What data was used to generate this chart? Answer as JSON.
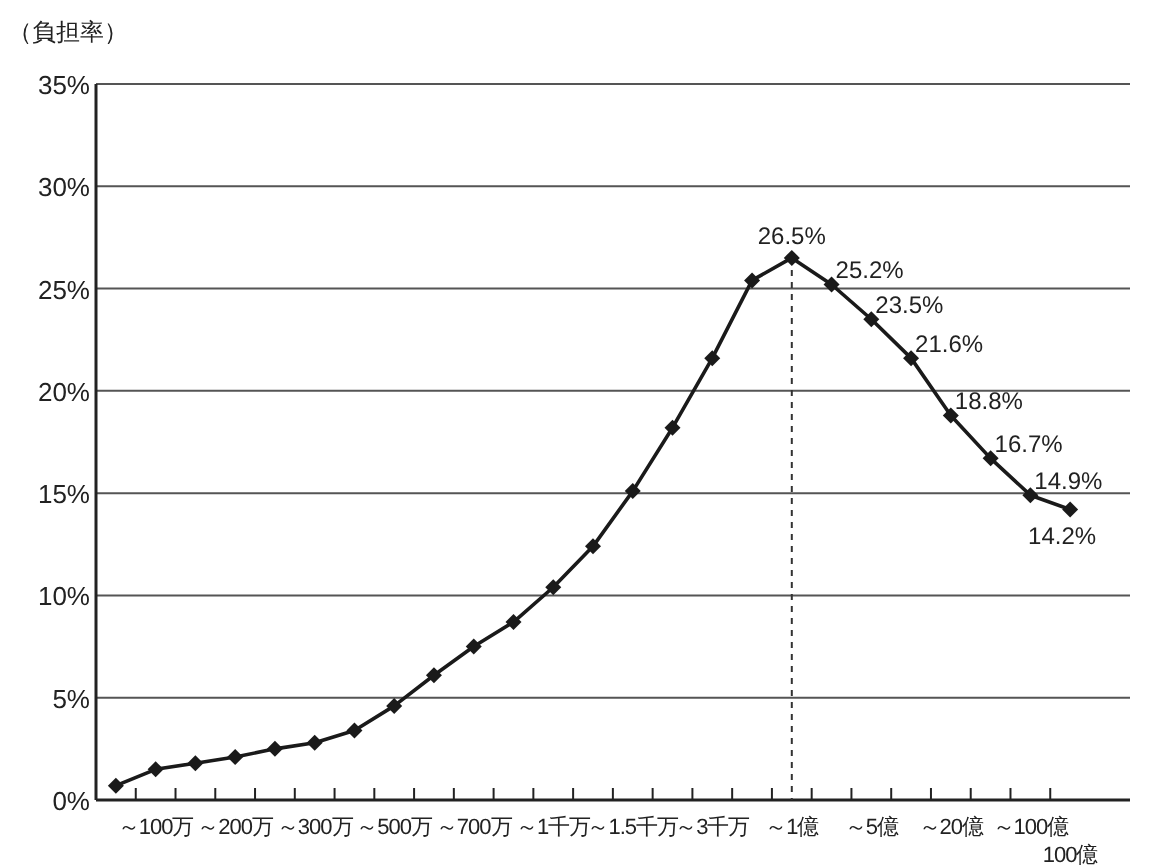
{
  "chart_data": {
    "type": "line",
    "ylabel": "（負担率）",
    "categories": [
      null,
      "～100万",
      null,
      "～200万",
      null,
      "～300万",
      null,
      "～500万",
      null,
      "～700万",
      null,
      "～1千万",
      null,
      "～1.5千万",
      null,
      "～3千万",
      null,
      "～1億",
      null,
      "～5億",
      null,
      "～20億",
      null,
      "～100億",
      "100億"
    ],
    "series": [
      {
        "color": "#1a1a1a",
        "values": [
          0.7,
          1.5,
          1.8,
          2.1,
          2.5,
          2.8,
          3.4,
          4.6,
          6.1,
          7.5,
          8.7,
          10.4,
          12.4,
          15.1,
          18.2,
          21.6,
          25.4,
          26.5,
          25.2,
          23.5,
          21.6,
          18.8,
          16.7,
          14.9,
          14.2
        ],
        "value_labels": [
          null,
          null,
          null,
          null,
          null,
          null,
          null,
          null,
          null,
          null,
          null,
          null,
          null,
          null,
          null,
          null,
          null,
          "26.5%",
          "25.2%",
          "23.5%",
          "21.6%",
          "18.8%",
          "16.7%",
          "14.9%",
          "14.2%"
        ]
      }
    ],
    "ylim": [
      0,
      35
    ],
    "yticks": [
      {
        "value": 0,
        "label": "0%"
      },
      {
        "value": 5,
        "label": "5%"
      },
      {
        "value": 10,
        "label": "10%"
      },
      {
        "value": 15,
        "label": "15%"
      },
      {
        "value": 20,
        "label": "20%"
      },
      {
        "value": 25,
        "label": "25%"
      },
      {
        "value": 30,
        "label": "30%"
      },
      {
        "value": 35,
        "label": "35%"
      }
    ],
    "grid": "y",
    "marker": "diamond",
    "line_style": "solid",
    "ref_lines": [
      {
        "axis": "x",
        "value": "～1億",
        "line_style": "dashed",
        "color": "#333333"
      }
    ]
  }
}
